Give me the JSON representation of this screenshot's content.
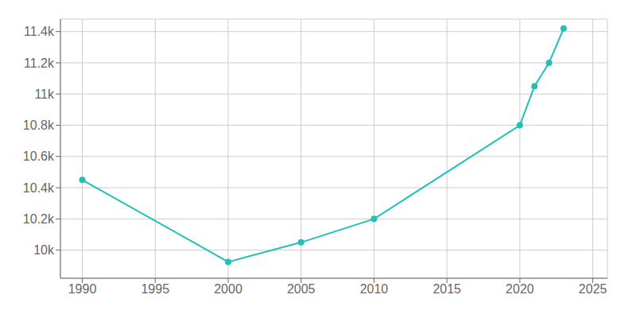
{
  "chart_data": {
    "type": "line",
    "x": [
      1990,
      2000,
      2005,
      2010,
      2020,
      2021,
      2022,
      2023
    ],
    "values": [
      10450,
      9925,
      10050,
      10200,
      10800,
      11050,
      11200,
      11420
    ],
    "color": "#20C0B8",
    "marker": "circle",
    "xlim": [
      1988.5,
      2026
    ],
    "ylim": [
      9820,
      11480
    ],
    "xticks": [
      1990,
      1995,
      2000,
      2005,
      2010,
      2015,
      2020,
      2025
    ],
    "yticks": [
      {
        "value": 10000,
        "label": "10k"
      },
      {
        "value": 10200,
        "label": "10.2k"
      },
      {
        "value": 10400,
        "label": "10.4k"
      },
      {
        "value": 10600,
        "label": "10.6k"
      },
      {
        "value": 10800,
        "label": "10.8k"
      },
      {
        "value": 11000,
        "label": "11k"
      },
      {
        "value": 11200,
        "label": "11.2k"
      },
      {
        "value": 11400,
        "label": "11.4k"
      }
    ],
    "grid": true
  }
}
